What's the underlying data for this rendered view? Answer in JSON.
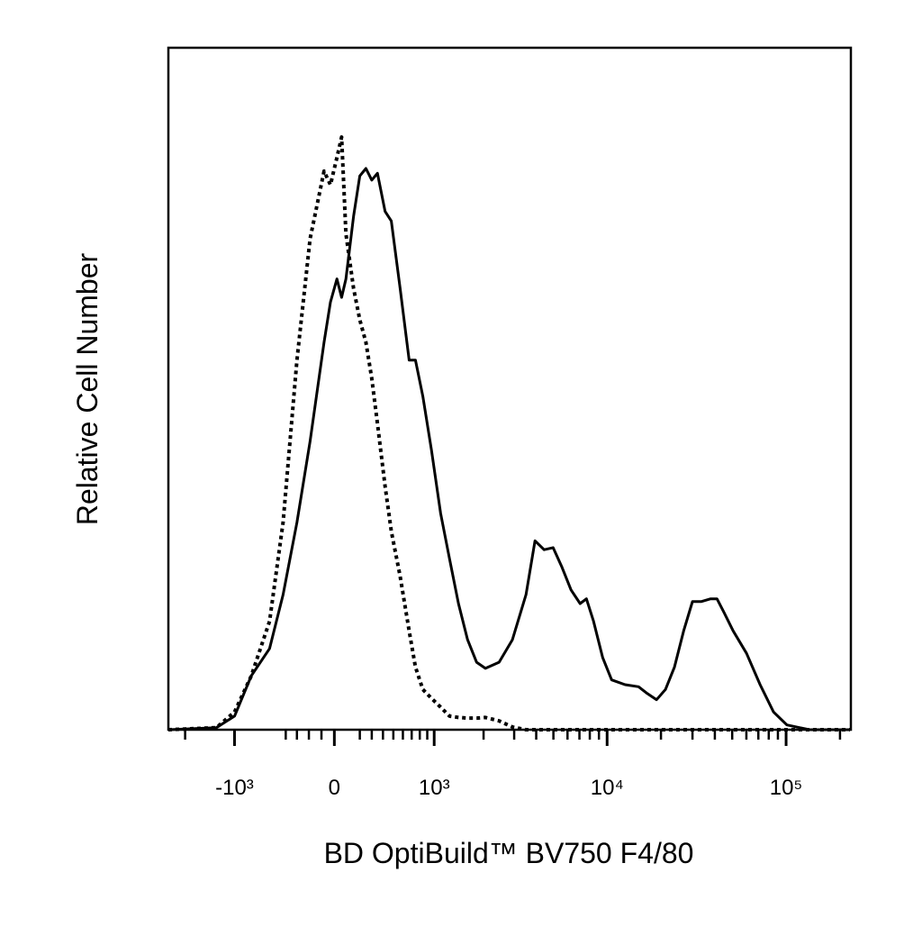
{
  "chart_data": {
    "type": "line",
    "x_label": "BD OptiBuild™ BV750 F4/80",
    "y_label": "Relative Cell Number",
    "xscale": "biexponential",
    "xlim": [
      -2500,
      230000
    ],
    "ylim": [
      0,
      100
    ],
    "xticks": [
      {
        "value": -1000,
        "label": "-10³"
      },
      0,
      {
        "value": 1000,
        "label": "10³"
      },
      {
        "value": 10000,
        "label": "10⁴"
      },
      {
        "value": 100000,
        "label": "10⁵"
      }
    ],
    "xminorticks": [
      -2000,
      -400,
      -300,
      -200,
      -100,
      200,
      300,
      400,
      500,
      600,
      700,
      800,
      900,
      2000,
      3000,
      4000,
      5000,
      6000,
      7000,
      8000,
      9000,
      20000,
      30000,
      40000,
      50000,
      60000,
      70000,
      80000,
      90000,
      200000
    ],
    "x": [
      -2500,
      -1300,
      -1000,
      -770,
      -560,
      -425,
      -300,
      -190,
      -80,
      -30,
      20,
      56,
      90,
      150,
      200,
      250,
      300,
      350,
      420,
      480,
      570,
      670,
      745,
      840,
      960,
      1100,
      1250,
      1420,
      1610,
      1820,
      2050,
      2460,
      2930,
      3500,
      3940,
      4430,
      4980,
      5590,
      6280,
      7060,
      7660,
      8400,
      9440,
      10600,
      12600,
      15000,
      16800,
      18900,
      21200,
      23800,
      26800,
      30000,
      33700,
      37900,
      41100,
      45000,
      50600,
      60100,
      71600,
      85100,
      101000,
      135000,
      227000
    ],
    "series": [
      {
        "color": "#000000",
        "line_style": "solid",
        "values": [
          0,
          0.3,
          2.0,
          7.9,
          11.9,
          19.8,
          30.4,
          42.3,
          56.8,
          62.7,
          66.1,
          63.4,
          66.1,
          75.3,
          81.2,
          82.3,
          80.6,
          81.6,
          76.0,
          74.6,
          64.7,
          54.2,
          54.2,
          48.9,
          41.0,
          31.7,
          25.1,
          18.5,
          13.2,
          9.9,
          9.0,
          9.9,
          13.2,
          19.8,
          27.7,
          26.4,
          26.7,
          23.8,
          20.5,
          18.5,
          19.2,
          15.9,
          10.6,
          7.3,
          6.6,
          6.3,
          5.3,
          4.4,
          5.9,
          9.2,
          14.5,
          18.8,
          18.8,
          19.2,
          19.2,
          17.2,
          14.5,
          11.2,
          6.6,
          2.6,
          0.7,
          0,
          0
        ]
      },
      {
        "color": "#000000",
        "line_style": "dotted",
        "values": [
          0,
          0.3,
          2.6,
          7.9,
          15.9,
          30.4,
          54.2,
          72.0,
          81.9,
          79.9,
          83.9,
          86.9,
          72.7,
          64.7,
          60.1,
          56.8,
          51.5,
          44.9,
          35.7,
          29.1,
          22.5,
          14.5,
          9.2,
          5.9,
          4.6,
          3.3,
          2.0,
          1.8,
          1.7,
          1.7,
          1.8,
          1.3,
          0.4,
          0,
          0,
          0,
          0,
          0,
          0,
          0,
          0,
          0,
          0,
          0,
          0,
          0,
          0,
          0,
          0,
          0,
          0,
          0,
          0,
          0,
          0,
          0,
          0,
          0,
          0,
          0,
          0,
          0,
          0
        ]
      }
    ]
  }
}
